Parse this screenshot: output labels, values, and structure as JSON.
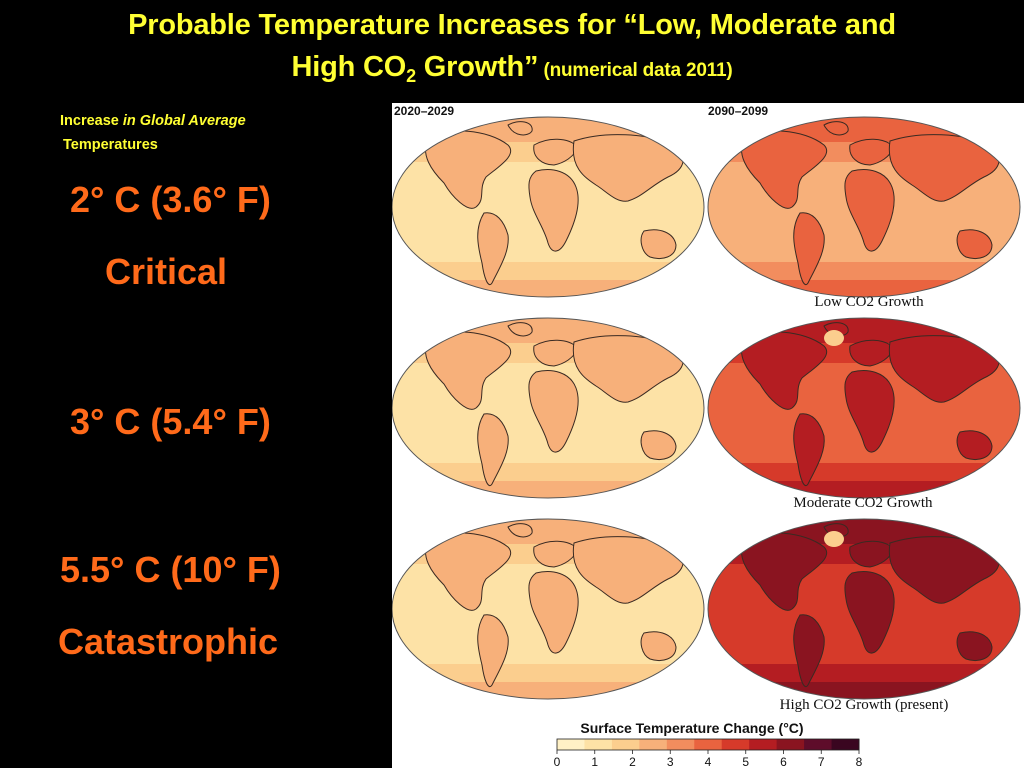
{
  "title": {
    "line1": "Probable Temperature Increases for “Low, Moderate and",
    "line2_a": "High CO",
    "line2_sub": "2",
    "line2_b": " Growth”",
    "line2_small": " (numerical data 2011)"
  },
  "subhead": {
    "a": "Increase ",
    "b": "in Global Average",
    "c": "Temperatures"
  },
  "stats": {
    "s1": "2° C (3.6° F)",
    "s1_label": "Critical",
    "s2": "3° C (5.4° F)",
    "s3": "5.5° C (10° F)",
    "s3_label": "Catastrophic"
  },
  "figure": {
    "period_left": "2020–2029",
    "period_right": "2090–2099",
    "captions": [
      "Low CO2 Growth",
      "Moderate CO2 Growth",
      "High CO2 Growth (present)"
    ],
    "legend_title": "Surface Temperature Change (°C)",
    "legend_ticks": [
      "0",
      "1",
      "2",
      "3",
      "4",
      "5",
      "6",
      "7",
      "8"
    ],
    "colors": {
      "scale": [
        "#fff1c6",
        "#fde2a6",
        "#fbce8e",
        "#f7b07a",
        "#f28d5e",
        "#e9633f",
        "#d63a2a",
        "#b41d22",
        "#8a1420",
        "#5e0c2a",
        "#3a0620"
      ]
    }
  }
}
